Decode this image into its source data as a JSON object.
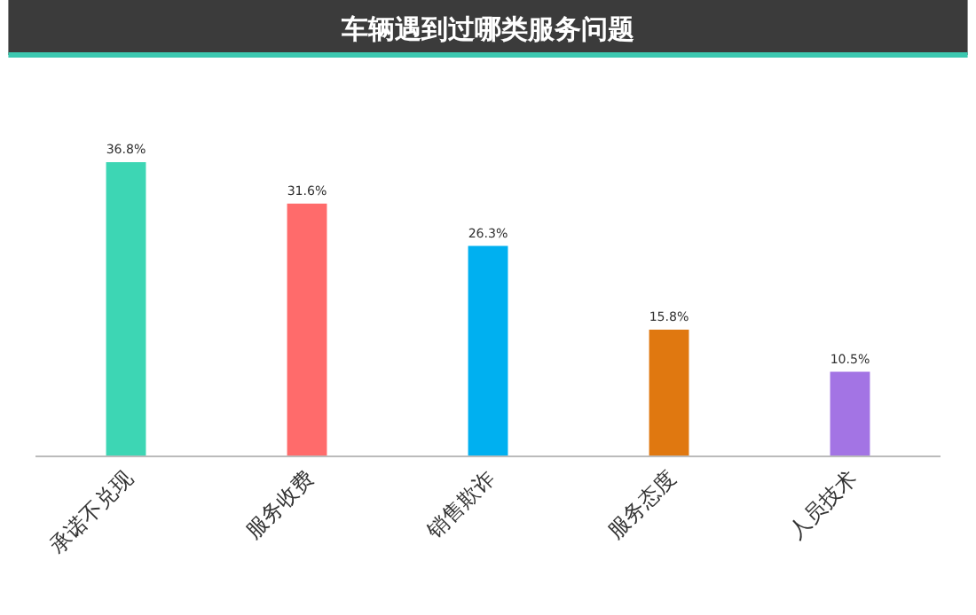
{
  "chart_data": {
    "type": "bar",
    "title": "车辆遇到过哪类服务问题",
    "categories": [
      "承诺不兑现",
      "服务收费",
      "销售欺诈",
      "服务态度",
      "人员技术"
    ],
    "values": [
      36.8,
      31.6,
      26.3,
      15.8,
      10.5
    ],
    "colors": [
      "#3dd6b4",
      "#ff6b6b",
      "#00b0f0",
      "#e07810",
      "#a374e4"
    ],
    "value_labels": [
      "36.8%",
      "31.6%",
      "26.3%",
      "15.8%",
      "10.5%"
    ],
    "legend": false
  }
}
